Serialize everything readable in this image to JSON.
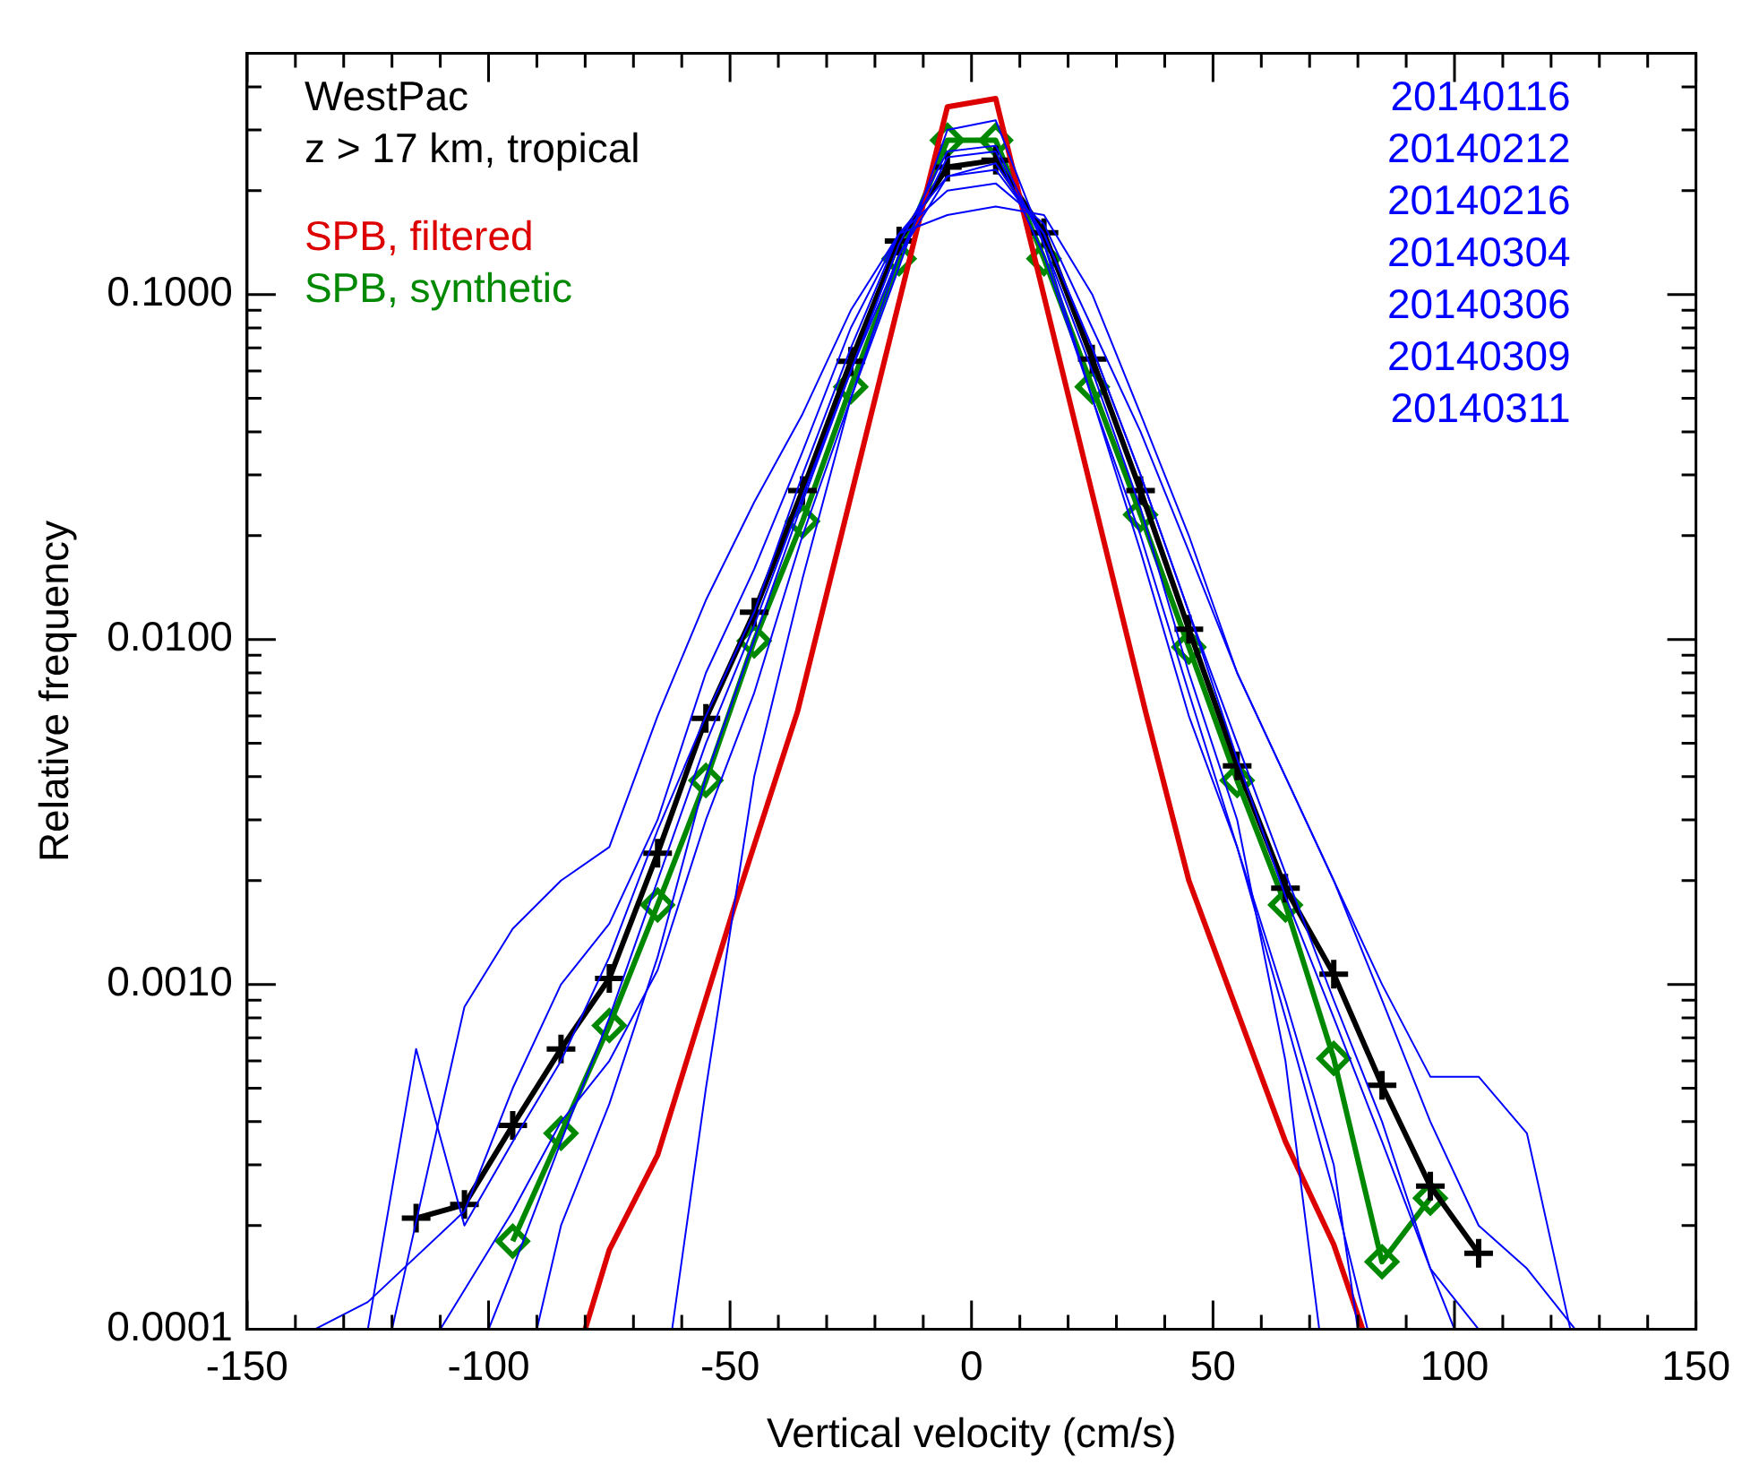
{
  "chart_data": {
    "type": "line",
    "xlabel": "Vertical velocity (cm/s)",
    "ylabel": "Relative frequency",
    "annotations": [
      "WestPac",
      "z > 17 km, tropical",
      "20140116\n20140212\n20140216\n20140304\n20140306\n20140309\n20140311"
    ],
    "log": "y",
    "grid": false,
    "legend": "top left",
    "marker": "none",
    "line_style": "solid",
    "xlim": [
      -150,
      150
    ],
    "xticks": [
      -150,
      {
        "value": -140,
        "label": null
      },
      {
        "value": -130,
        "label": null
      },
      {
        "value": -120,
        "label": null
      },
      {
        "value": -110,
        "label": null
      },
      -100,
      {
        "value": -90,
        "label": null
      },
      {
        "value": -80,
        "label": null
      },
      {
        "value": -70,
        "label": null
      },
      {
        "value": -60,
        "label": null
      },
      -50,
      {
        "value": -40,
        "label": null
      },
      {
        "value": -30,
        "label": null
      },
      {
        "value": -20,
        "label": null
      },
      {
        "value": -10,
        "label": null
      },
      0,
      {
        "value": 10,
        "label": null
      },
      {
        "value": 20,
        "label": null
      },
      {
        "value": 30,
        "label": null
      },
      {
        "value": 40,
        "label": null
      },
      50,
      {
        "value": 60,
        "label": null
      },
      {
        "value": 70,
        "label": null
      },
      {
        "value": 80,
        "label": null
      },
      {
        "value": 90,
        "label": null
      },
      100,
      {
        "value": 110,
        "label": null
      },
      {
        "value": 120,
        "label": null
      },
      {
        "value": 130,
        "label": null
      },
      {
        "value": 140,
        "label": null
      },
      150
    ],
    "ylim": [
      0.0001,
      0.5
    ],
    "yticks": [
      {
        "value": 0.0001,
        "label": "0.0001"
      },
      {
        "value": 0.0002,
        "label": null
      },
      {
        "value": 0.0003,
        "label": null
      },
      {
        "value": 0.0004,
        "label": null
      },
      {
        "value": 0.0005,
        "label": null
      },
      {
        "value": 0.0006,
        "label": null
      },
      {
        "value": 0.0007,
        "label": null
      },
      {
        "value": 0.0008,
        "label": null
      },
      {
        "value": 0.0009,
        "label": null
      },
      {
        "value": 0.001,
        "label": "0.0010"
      },
      {
        "value": 0.002,
        "label": null
      },
      {
        "value": 0.003,
        "label": null
      },
      {
        "value": 0.004,
        "label": null
      },
      {
        "value": 0.005,
        "label": null
      },
      {
        "value": 0.006,
        "label": null
      },
      {
        "value": 0.007,
        "label": null
      },
      {
        "value": 0.008,
        "label": null
      },
      {
        "value": 0.009,
        "label": null
      },
      {
        "value": 0.01,
        "label": "0.0100"
      },
      {
        "value": 0.02,
        "label": null
      },
      {
        "value": 0.03,
        "label": null
      },
      {
        "value": 0.04,
        "label": null
      },
      {
        "value": 0.05,
        "label": null
      },
      {
        "value": 0.06,
        "label": null
      },
      {
        "value": 0.07,
        "label": null
      },
      {
        "value": 0.08,
        "label": null
      },
      {
        "value": 0.09,
        "label": null
      },
      {
        "value": 0.1,
        "label": "0.1000"
      },
      {
        "value": 0.2,
        "label": null
      },
      {
        "value": 0.3,
        "label": null
      },
      {
        "value": 0.4,
        "label": null
      },
      {
        "value": 0.5,
        "label": null
      }
    ],
    "series": [
      {
        "color": "#0000ff",
        "x": [
          -125,
          -115,
          -105,
          -95,
          -85,
          -75,
          -65,
          -55,
          -45,
          -35,
          -25,
          -15,
          -5,
          5,
          15,
          25,
          35,
          45,
          55,
          65,
          75,
          85,
          95,
          105
        ],
        "values": [
          0.0001,
          0.00065,
          0.0002,
          0.00035,
          0.0006,
          0.0012,
          0.0028,
          0.006,
          0.012,
          0.03,
          0.07,
          0.15,
          0.22,
          0.23,
          0.15,
          0.07,
          0.03,
          0.012,
          0.0045,
          0.0018,
          0.0008,
          0.00035,
          0.00015,
          0.0001
        ]
      },
      {
        "color": "#0000ff",
        "x": [
          -120,
          -105,
          -95,
          -85,
          -75,
          -65,
          -55,
          -45,
          -35,
          -25,
          -15,
          -5,
          5,
          15,
          25,
          35,
          45,
          55,
          65,
          75,
          85,
          95,
          105,
          115,
          124
        ],
        "values": [
          0.0001,
          0.00086,
          0.00145,
          0.002,
          0.0025,
          0.006,
          0.013,
          0.025,
          0.045,
          0.09,
          0.15,
          0.17,
          0.18,
          0.17,
          0.1,
          0.045,
          0.02,
          0.008,
          0.004,
          0.002,
          0.001,
          0.00054,
          0.00054,
          0.00037,
          0.0001
        ]
      },
      {
        "color": "#0000ff",
        "x": [
          -136,
          -125,
          -105,
          -95,
          -85,
          -75,
          -65,
          -55,
          -45,
          -35,
          -25,
          -15,
          -5,
          5,
          15,
          25,
          35,
          45,
          55,
          65,
          75,
          85,
          95,
          105,
          115,
          125
        ],
        "values": [
          0.0001,
          0.00012,
          0.00022,
          0.0005,
          0.001,
          0.0015,
          0.003,
          0.008,
          0.016,
          0.035,
          0.08,
          0.15,
          0.2,
          0.21,
          0.16,
          0.08,
          0.04,
          0.018,
          0.008,
          0.004,
          0.002,
          0.0009,
          0.0004,
          0.0002,
          0.00015,
          0.0001
        ]
      },
      {
        "color": "#0000ff",
        "x": [
          -110,
          -95,
          -85,
          -75,
          -65,
          -55,
          -45,
          -35,
          -25,
          -15,
          -5,
          5,
          15,
          25,
          35,
          45,
          55,
          65,
          75,
          80
        ],
        "values": [
          0.0001,
          0.00022,
          0.0004,
          0.0006,
          0.0011,
          0.003,
          0.007,
          0.02,
          0.05,
          0.12,
          0.3,
          0.32,
          0.14,
          0.05,
          0.018,
          0.006,
          0.0025,
          0.0009,
          0.0003,
          0.0001
        ]
      },
      {
        "color": "#0000ff",
        "x": [
          -90,
          -85,
          -75,
          -65,
          -55,
          -45,
          -35,
          -25,
          -15,
          -5,
          5,
          15,
          25,
          35,
          45,
          55,
          65,
          72
        ],
        "values": [
          0.0001,
          0.0002,
          0.00045,
          0.0012,
          0.004,
          0.01,
          0.025,
          0.06,
          0.14,
          0.26,
          0.27,
          0.14,
          0.06,
          0.024,
          0.008,
          0.003,
          0.0006,
          0.0001
        ]
      },
      {
        "color": "#0000ff",
        "x": [
          -100,
          -95,
          -85,
          -75,
          -65,
          -55,
          -45,
          -35,
          -25,
          -15,
          -5,
          5,
          15,
          25,
          35,
          45,
          55,
          65,
          75,
          85,
          95,
          100
        ],
        "values": [
          0.0001,
          0.00015,
          0.00035,
          0.0008,
          0.002,
          0.005,
          0.011,
          0.026,
          0.06,
          0.13,
          0.22,
          0.24,
          0.15,
          0.07,
          0.03,
          0.012,
          0.005,
          0.0021,
          0.0009,
          0.0004,
          0.00015,
          0.0001
        ]
      },
      {
        "color": "#0000ff",
        "x": [
          -62,
          -55,
          -45,
          -35,
          -25,
          -15,
          -5,
          5,
          15,
          25,
          35,
          45,
          55,
          65,
          75,
          82
        ],
        "values": [
          0.0001,
          0.0005,
          0.004,
          0.015,
          0.05,
          0.13,
          0.25,
          0.26,
          0.13,
          0.05,
          0.02,
          0.007,
          0.0025,
          0.0008,
          0.00025,
          0.0001
        ]
      },
      {
        "name": "SPB, filtered",
        "color": "#dd0000",
        "x": [
          -80,
          -75,
          -65,
          -49,
          -36,
          -5,
          5,
          36,
          45,
          65,
          75,
          81
        ],
        "values": [
          0.0001,
          0.00017,
          0.00032,
          0.0017,
          0.0062,
          0.35,
          0.37,
          0.0062,
          0.002,
          0.00035,
          0.000176,
          0.0001
        ]
      },
      {
        "color": "#000000",
        "marker": "cross",
        "x": [
          -115,
          -105,
          -95,
          -85,
          -75,
          -65,
          -55,
          -45,
          -35,
          -25,
          -15,
          -5,
          5,
          15,
          25,
          35,
          45,
          55,
          65,
          75,
          85,
          95,
          105
        ],
        "values": [
          0.00021,
          0.00023,
          0.00039,
          0.00065,
          0.00104,
          0.0024,
          0.0059,
          0.012,
          0.027,
          0.064,
          0.143,
          0.234,
          0.245,
          0.151,
          0.065,
          0.027,
          0.0107,
          0.0043,
          0.0019,
          0.00107,
          0.00051,
          0.00026,
          0.000166
        ]
      },
      {
        "name": "SPB, synthetic",
        "color": "#008800",
        "marker": "diamond",
        "x": [
          -95,
          -85,
          -75,
          -65,
          -55,
          -45,
          -35,
          -25,
          -15,
          -5,
          5,
          15,
          25,
          35,
          45,
          55,
          65,
          75,
          85,
          95
        ],
        "values": [
          0.00018,
          0.00037,
          0.00076,
          0.0017,
          0.0039,
          0.0099,
          0.022,
          0.054,
          0.127,
          0.28,
          0.28,
          0.127,
          0.054,
          0.023,
          0.0095,
          0.0039,
          0.0017,
          0.00061,
          0.000157,
          0.00024
        ]
      }
    ]
  }
}
